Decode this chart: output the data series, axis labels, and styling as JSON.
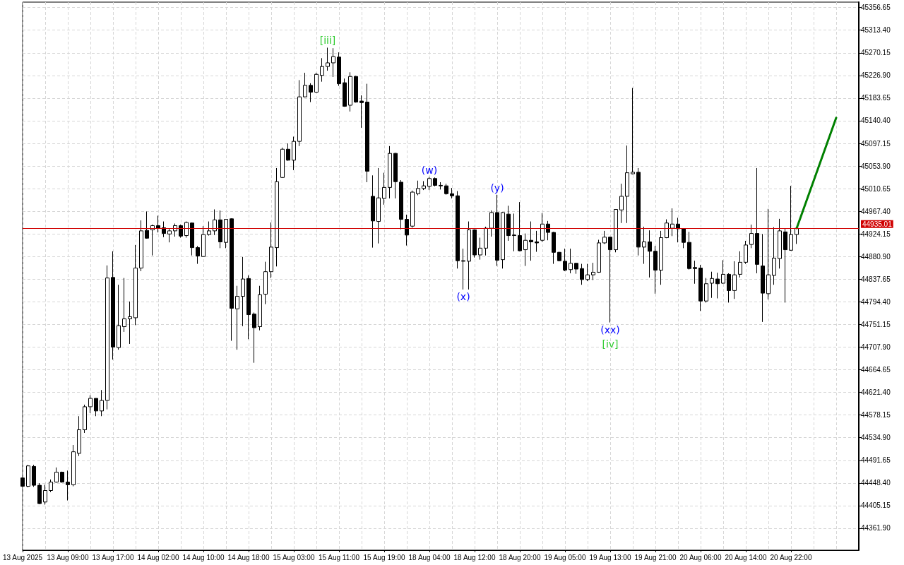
{
  "chart_data": {
    "type": "candlestick",
    "categories": [
      "13 Aug 2025",
      null,
      null,
      null,
      null,
      null,
      null,
      null,
      "13 Aug 09:00",
      null,
      null,
      null,
      null,
      null,
      null,
      null,
      "13 Aug 17:00",
      null,
      null,
      null,
      null,
      null,
      null,
      null,
      "14 Aug 02:00",
      null,
      null,
      null,
      null,
      null,
      null,
      null,
      "14 Aug 10:00",
      null,
      null,
      null,
      null,
      null,
      null,
      null,
      "14 Aug 18:00",
      null,
      null,
      null,
      null,
      null,
      null,
      null,
      "15 Aug 03:00",
      null,
      null,
      null,
      null,
      null,
      null,
      null,
      "15 Aug 11:00",
      null,
      null,
      null,
      null,
      null,
      null,
      null,
      "15 Aug 19:00",
      null,
      null,
      null,
      null,
      null,
      null,
      null,
      "18 Aug 04:00",
      null,
      null,
      null,
      null,
      null,
      null,
      null,
      "18 Aug 12:00",
      null,
      null,
      null,
      null,
      null,
      null,
      null,
      "18 Aug 20:00",
      null,
      null,
      null,
      null,
      null,
      null,
      null,
      "19 Aug 05:00",
      null,
      null,
      null,
      null,
      null,
      null,
      null,
      "19 Aug 13:00",
      null,
      null,
      null,
      null,
      null,
      null,
      null,
      "19 Aug 21:00",
      null,
      null,
      null,
      null,
      null,
      null,
      null,
      "20 Aug 06:00",
      null,
      null,
      null,
      null,
      null,
      null,
      null,
      "20 Aug 14:00",
      null,
      null,
      null,
      null,
      null,
      null,
      null,
      "20 Aug 22:00",
      null,
      null,
      null,
      null,
      null,
      null,
      null,
      null,
      null,
      null,
      null,
      null
    ],
    "series": [
      {
        "color": "#000000",
        "ohlc": [
          [
            44458,
            44459,
            44441,
            44442
          ],
          [
            44442,
            44483,
            44440,
            44481
          ],
          [
            44480,
            44483,
            44441,
            44444
          ],
          [
            44444,
            44448,
            44408,
            44409
          ],
          [
            44412,
            44445,
            44407,
            44434
          ],
          [
            44434,
            44455,
            44431,
            44450
          ],
          [
            44450,
            44478,
            44449,
            44469
          ],
          [
            44469,
            44470,
            44449,
            44450
          ],
          [
            44450,
            44472,
            44415,
            44445
          ],
          [
            44445,
            44521,
            44442,
            44508
          ],
          [
            44505,
            44576,
            44500,
            44550
          ],
          [
            44550,
            44598,
            44544,
            44594
          ],
          [
            44594,
            44616,
            44582,
            44610
          ],
          [
            44610,
            44610,
            44576,
            44586
          ],
          [
            44586,
            44626,
            44576,
            44606
          ],
          [
            44606,
            44864,
            44589,
            44840
          ],
          [
            44841,
            44891,
            44684,
            44708
          ],
          [
            44707,
            44827,
            44703,
            44749
          ],
          [
            44747,
            44840,
            44737,
            44762
          ],
          [
            44762,
            44795,
            44714,
            44766
          ],
          [
            44764,
            44903,
            44750,
            44859
          ],
          [
            44859,
            44950,
            44853,
            44930
          ],
          [
            44931,
            44967,
            44915,
            44916
          ],
          [
            44932,
            44942,
            44883,
            44940
          ],
          [
            44940,
            44959,
            44927,
            44935
          ],
          [
            44936,
            44948,
            44918,
            44925
          ],
          [
            44924,
            44935,
            44908,
            44930
          ],
          [
            44930,
            44944,
            44919,
            44940
          ],
          [
            44940,
            44942,
            44917,
            44920
          ],
          [
            44921,
            44948,
            44917,
            44946
          ],
          [
            44945,
            44946,
            44883,
            44898
          ],
          [
            44898,
            44901,
            44867,
            44882
          ],
          [
            44881,
            44939,
            44880,
            44923
          ],
          [
            44923,
            44948,
            44921,
            44930
          ],
          [
            44930,
            44971,
            44922,
            44951
          ],
          [
            44951,
            44969,
            44897,
            44909
          ],
          [
            44908,
            44952,
            44897,
            44952
          ],
          [
            44953,
            44954,
            44720,
            44782
          ],
          [
            44781,
            44825,
            44703,
            44805
          ],
          [
            44805,
            44880,
            44748,
            44838
          ],
          [
            44839,
            44845,
            44723,
            44770
          ],
          [
            44771,
            44774,
            44678,
            44745
          ],
          [
            44747,
            44825,
            44740,
            44808
          ],
          [
            44809,
            44871,
            44790,
            44852
          ],
          [
            44852,
            44946,
            44840,
            44899
          ],
          [
            44898,
            45050,
            44862,
            45024
          ],
          [
            45032,
            45089,
            45031,
            45086
          ],
          [
            45086,
            45097,
            45064,
            45065
          ],
          [
            45065,
            45110,
            45046,
            45101
          ],
          [
            45101,
            45218,
            45092,
            45186
          ],
          [
            45186,
            45232,
            45185,
            45208
          ],
          [
            45208,
            45212,
            45176,
            45195
          ],
          [
            45195,
            45232,
            45194,
            45229
          ],
          [
            45227,
            45260,
            45215,
            45244
          ],
          [
            45244,
            45280,
            45236,
            45251
          ],
          [
            45251,
            45279,
            45224,
            45263
          ],
          [
            45262,
            45271,
            45207,
            45211
          ],
          [
            45213,
            45221,
            45167,
            45168
          ],
          [
            45170,
            45233,
            45158,
            45225
          ],
          [
            45225,
            45226,
            45175,
            45176
          ],
          [
            45178,
            45189,
            45127,
            45175
          ],
          [
            45176,
            45211,
            45023,
            45044
          ],
          [
            44996,
            45036,
            44898,
            44949
          ],
          [
            44948,
            45050,
            44906,
            44993
          ],
          [
            44992,
            45041,
            44980,
            45013
          ],
          [
            45013,
            45092,
            44992,
            45078
          ],
          [
            45078,
            45079,
            44992,
            45024
          ],
          [
            45023,
            45027,
            44933,
            44952
          ],
          [
            44952,
            44961,
            44902,
            44922
          ],
          [
            44939,
            45007,
            44936,
            45004
          ],
          [
            45001,
            45026,
            44998,
            45011
          ],
          [
            45011,
            45025,
            45008,
            45016
          ],
          [
            45015,
            45033,
            45008,
            45030
          ],
          [
            45030,
            45032,
            45015,
            45017
          ],
          [
            45017,
            45023,
            45009,
            45016
          ],
          [
            45016,
            45020,
            44999,
            45001
          ],
          [
            45001,
            45012,
            44992,
            44997
          ],
          [
            44997,
            45006,
            44858,
            44873
          ],
          [
            44873,
            44896,
            44818,
            44872
          ],
          [
            44872,
            44948,
            44818,
            44932
          ],
          [
            44932,
            44933,
            44879,
            44884
          ],
          [
            44884,
            44917,
            44875,
            44897
          ],
          [
            44897,
            44938,
            44883,
            44935
          ],
          [
            44935,
            44969,
            44919,
            44965
          ],
          [
            44965,
            44999,
            44863,
            44874
          ],
          [
            44875,
            44966,
            44858,
            44965
          ],
          [
            44962,
            44978,
            44911,
            44921
          ],
          [
            44922,
            44963,
            44891,
            44921
          ],
          [
            44921,
            44985,
            44891,
            44892
          ],
          [
            44894,
            44925,
            44863,
            44912
          ],
          [
            44912,
            44948,
            44873,
            44909
          ],
          [
            44909,
            44930,
            44890,
            44907
          ],
          [
            44912,
            44964,
            44909,
            44943
          ],
          [
            44943,
            44949,
            44912,
            44927
          ],
          [
            44927,
            44928,
            44867,
            44889
          ],
          [
            44889,
            44890,
            44872,
            44873
          ],
          [
            44872,
            44896,
            44853,
            44855
          ],
          [
            44856,
            44896,
            44849,
            44868
          ],
          [
            44868,
            44869,
            44848,
            44857
          ],
          [
            44858,
            44867,
            44827,
            44837
          ],
          [
            44837,
            44867,
            44834,
            44846
          ],
          [
            44846,
            44869,
            44836,
            44851
          ],
          [
            44851,
            44913,
            44850,
            44907
          ],
          [
            44907,
            44930,
            44905,
            44918
          ],
          [
            44918,
            44919,
            44755,
            44894
          ],
          [
            44894,
            44971,
            44889,
            44971
          ],
          [
            44970,
            45020,
            44945,
            44996
          ],
          [
            44996,
            45093,
            44945,
            45041
          ],
          [
            45039,
            45203,
            45038,
            45042
          ],
          [
            45042,
            45050,
            44883,
            44899
          ],
          [
            44899,
            44938,
            44867,
            44909
          ],
          [
            44909,
            44931,
            44841,
            44891
          ],
          [
            44891,
            44901,
            44810,
            44855
          ],
          [
            44855,
            44930,
            44827,
            44917
          ],
          [
            44917,
            44952,
            44916,
            44945
          ],
          [
            44935,
            44973,
            44920,
            44943
          ],
          [
            44943,
            44955,
            44908,
            44934
          ],
          [
            44934,
            44935,
            44897,
            44908
          ],
          [
            44908,
            44928,
            44856,
            44858
          ],
          [
            44860,
            44873,
            44829,
            44858
          ],
          [
            44859,
            44865,
            44777,
            44796
          ],
          [
            44796,
            44840,
            44793,
            44829
          ],
          [
            44830,
            44852,
            44802,
            44839
          ],
          [
            44838,
            44850,
            44801,
            44829
          ],
          [
            44830,
            44874,
            44829,
            44847
          ],
          [
            44847,
            44849,
            44793,
            44816
          ],
          [
            44816,
            44872,
            44800,
            44846
          ],
          [
            44847,
            44891,
            44841,
            44870
          ],
          [
            44870,
            44911,
            44867,
            44903
          ],
          [
            44904,
            44942,
            44897,
            44925
          ],
          [
            44925,
            45050,
            44849,
            44866
          ],
          [
            44863,
            44924,
            44756,
            44811
          ],
          [
            44810,
            44972,
            44799,
            44846
          ],
          [
            44845,
            44937,
            44827,
            44878
          ],
          [
            44877,
            44953,
            44858,
            44930
          ],
          [
            44928,
            44935,
            44793,
            44894
          ],
          [
            44893,
            45016,
            44892,
            44923
          ],
          [
            44923,
            44936,
            44905,
            44935
          ],
          null,
          null,
          null,
          null,
          null,
          null,
          null,
          null,
          null,
          null,
          null
        ]
      },
      {
        "type": "line",
        "color": "#008000",
        "values": [
          null,
          null,
          null,
          null,
          null,
          null,
          null,
          null,
          null,
          null,
          null,
          null,
          null,
          null,
          null,
          null,
          null,
          null,
          null,
          null,
          null,
          null,
          null,
          null,
          null,
          null,
          null,
          null,
          null,
          null,
          null,
          null,
          null,
          null,
          null,
          null,
          null,
          null,
          null,
          null,
          null,
          null,
          null,
          null,
          null,
          null,
          null,
          null,
          null,
          null,
          null,
          null,
          null,
          null,
          null,
          null,
          null,
          null,
          null,
          null,
          null,
          null,
          null,
          null,
          null,
          null,
          null,
          null,
          null,
          null,
          null,
          null,
          null,
          null,
          null,
          null,
          null,
          null,
          null,
          null,
          null,
          null,
          null,
          null,
          null,
          null,
          null,
          null,
          null,
          null,
          null,
          null,
          null,
          null,
          null,
          null,
          null,
          null,
          null,
          null,
          null,
          null,
          null,
          null,
          null,
          null,
          null,
          null,
          null,
          null,
          null,
          null,
          null,
          null,
          null,
          null,
          null,
          null,
          null,
          null,
          null,
          null,
          null,
          null,
          null,
          null,
          null,
          null,
          null,
          null,
          null,
          null,
          null,
          null,
          null,
          null,
          null,
          44935,
          null,
          null,
          null,
          null,
          null,
          null,
          45146,
          null,
          null,
          null,
          null
        ]
      }
    ],
    "ylim": [
      44320,
      45367
    ],
    "yticks": [
      45356.65,
      {
        "value": 45313.4,
        "label": "45313.40"
      },
      45270.15,
      {
        "value": 45226.9,
        "label": "45226.90"
      },
      45183.65,
      {
        "value": 45140.4,
        "label": "45140.40"
      },
      45097.15,
      {
        "value": 45053.9,
        "label": "45053.90"
      },
      45010.65,
      {
        "value": 44967.4,
        "label": "44967.40"
      },
      44924.15,
      {
        "value": 44880.9,
        "label": "44880.90"
      },
      44837.65,
      {
        "value": 44794.4,
        "label": "44794.40"
      },
      44751.15,
      {
        "value": 44707.9,
        "label": "44707.90"
      },
      44664.65,
      {
        "value": 44621.4,
        "label": "44621.40"
      },
      44578.15,
      {
        "value": 44534.9,
        "label": "44534.90"
      },
      44491.65,
      {
        "value": 44448.4,
        "label": "44448.40"
      },
      44405.15,
      {
        "value": 44361.9,
        "label": "44361.90"
      }
    ],
    "grid": true,
    "ref_lines": [
      {
        "axis": "y",
        "value": 44935.01,
        "label": "44935.01",
        "color": "#d00000"
      }
    ],
    "annotations": [
      {
        "text": "[iii]",
        "y": 45280
      },
      {
        "text": "(w)",
        "x": "18 Aug 04:00",
        "y": 45033
      },
      {
        "text": "(x)",
        "y": 44818
      },
      {
        "text": "(y)",
        "y": 44999
      },
      {
        "text": "(xx)",
        "x": "19 Aug 13:00",
        "y": 44755
      },
      {
        "text": "[iv]",
        "x": "19 Aug 13:00",
        "y": 44755
      }
    ]
  }
}
